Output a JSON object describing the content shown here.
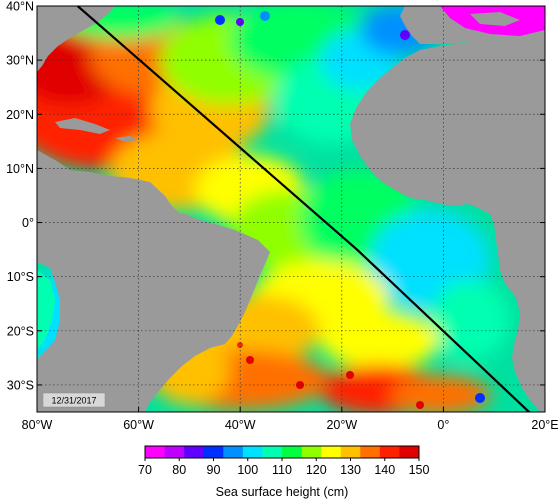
{
  "map": {
    "date_label": "12/31/2017",
    "lat_labels": [
      "40°N",
      "30°N",
      "20°N",
      "10°N",
      "0°",
      "10°S",
      "20°S",
      "30°S"
    ],
    "lon_labels": [
      "80°W",
      "60°W",
      "40°W",
      "20°W",
      "0°",
      "20°E"
    ],
    "lat_values": [
      40,
      30,
      20,
      10,
      0,
      -10,
      -20,
      -30
    ],
    "lon_values": [
      -80,
      -60,
      -40,
      -20,
      0,
      20
    ],
    "extent": {
      "lon_min": -80,
      "lon_max": 20,
      "lat_min": -35,
      "lat_max": 40
    },
    "track_line": [
      [
        -72,
        40
      ],
      [
        -17,
        -5
      ],
      [
        18,
        -36
      ]
    ],
    "colors": {
      "land": "#9a9a9a",
      "track": "#000000",
      "grid": "#333333"
    }
  },
  "colorbar": {
    "title": "Sea surface height (cm)",
    "tick_labels": [
      "70",
      "80",
      "90",
      "100",
      "110",
      "120",
      "130",
      "140",
      "150"
    ],
    "min": 70,
    "max": 150,
    "colors": [
      "#ff00ff",
      "#c000ff",
      "#6000ff",
      "#0030ff",
      "#0090ff",
      "#00e0ff",
      "#00ffb0",
      "#00ff40",
      "#90ff00",
      "#ffff00",
      "#ffc000",
      "#ff7000",
      "#ff2000",
      "#e00000"
    ]
  }
}
